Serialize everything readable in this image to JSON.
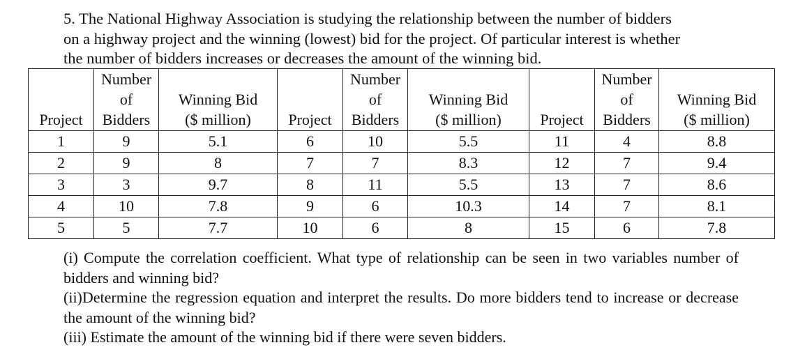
{
  "problem": {
    "lines": [
      "5. The National Highway Association is studying the relationship between the number of bidders",
      "on a highway project and the winning (lowest) bid for the project. Of particular interest is whether",
      "the number of bidders increases or decreases the amount of the winning bid."
    ]
  },
  "table": {
    "headers": [
      [
        "Project"
      ],
      [
        "Number",
        "of",
        "Bidders"
      ],
      [
        "Winning Bid",
        "($ million)"
      ],
      [
        "Project"
      ],
      [
        "Number",
        "of",
        "Bidders"
      ],
      [
        "Winning Bid",
        "($ million)"
      ],
      [
        "Project"
      ],
      [
        "Number",
        "of",
        "Bidders"
      ],
      [
        "Winning Bid",
        "($ million)"
      ]
    ],
    "rows": [
      [
        "1",
        "9",
        "5.1",
        "6",
        "10",
        "5.5",
        "11",
        "4",
        "8.8"
      ],
      [
        "2",
        "9",
        "8",
        "7",
        "7",
        "8.3",
        "12",
        "7",
        "9.4"
      ],
      [
        "3",
        "3",
        "9.7",
        "8",
        "11",
        "5.5",
        "13",
        "7",
        "8.6"
      ],
      [
        "4",
        "10",
        "7.8",
        "9",
        "6",
        "10.3",
        "14",
        "7",
        "8.1"
      ],
      [
        "5",
        "5",
        "7.7",
        "10",
        "6",
        "8",
        "15",
        "6",
        "7.8"
      ]
    ]
  },
  "questions": [
    "(i) Compute the correlation coefficient. What type of relationship can be seen in two variables number of bidders and winning bid?",
    "(ii)Determine the regression equation and interpret the results. Do more bidders tend to increase or decrease the amount of the winning bid?",
    "(iii) Estimate the amount of the winning bid if there were seven bidders."
  ]
}
